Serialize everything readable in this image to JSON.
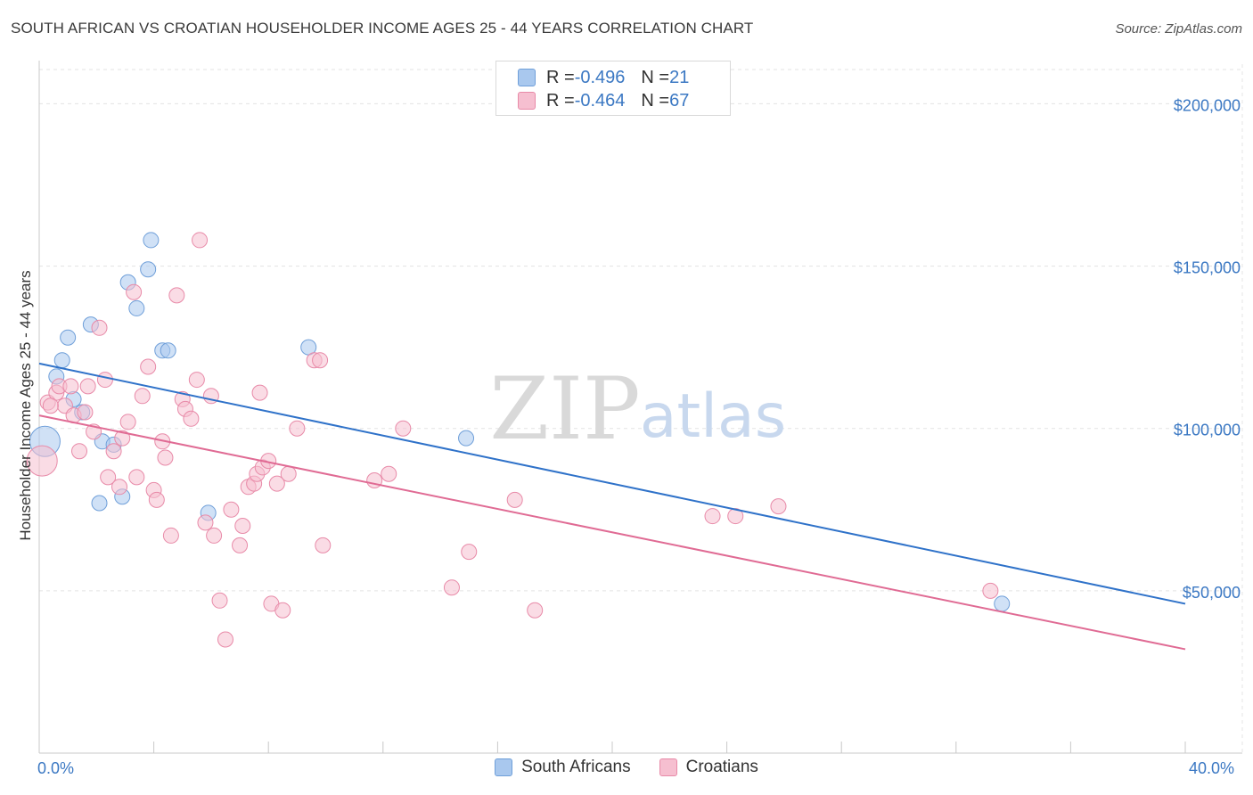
{
  "title": "SOUTH AFRICAN VS CROATIAN HOUSEHOLDER INCOME AGES 25 - 44 YEARS CORRELATION CHART",
  "source": "Source: ZipAtlas.com",
  "watermark": {
    "zip": "ZIP",
    "atlas": "atlas"
  },
  "legend": {
    "rows": [
      {
        "r_label": "R = ",
        "r_value": "-0.496",
        "n_label": "N = ",
        "n_value": "21",
        "color": "#a9c8ee",
        "edge": "#6f9fd9"
      },
      {
        "r_label": "R = ",
        "r_value": "-0.464",
        "n_label": "N = ",
        "n_value": "67",
        "color": "#f6bfd0",
        "edge": "#e88aa8"
      }
    ]
  },
  "bottom_legend": [
    "South Africans",
    "Croatians"
  ],
  "chart_data": {
    "type": "scatter",
    "xlabel": "",
    "ylabel": "Householder Income Ages 25 - 44 years",
    "xlim": [
      0,
      40
    ],
    "ylim": [
      0,
      210000
    ],
    "x_tick_labels": [
      "0.0%",
      "40.0%"
    ],
    "y_ticks": [
      50000,
      100000,
      150000,
      200000
    ],
    "y_tick_labels": [
      "$50,000",
      "$100,000",
      "$150,000",
      "$200,000"
    ],
    "grid": true,
    "series": [
      {
        "name": "South Africans",
        "color": "#a9c8ee",
        "edge": "#6f9fd9",
        "line_color": "#2f72c9",
        "trend": {
          "x0": 0,
          "y0": 120000,
          "x1": 40,
          "y1": 46000
        },
        "points": [
          {
            "x": 0.2,
            "y": 96000,
            "big": true
          },
          {
            "x": 0.6,
            "y": 116000
          },
          {
            "x": 0.8,
            "y": 121000
          },
          {
            "x": 1.0,
            "y": 128000
          },
          {
            "x": 1.2,
            "y": 109000
          },
          {
            "x": 1.5,
            "y": 105000
          },
          {
            "x": 1.8,
            "y": 132000
          },
          {
            "x": 2.1,
            "y": 77000
          },
          {
            "x": 2.2,
            "y": 96000
          },
          {
            "x": 2.6,
            "y": 95000
          },
          {
            "x": 2.9,
            "y": 79000
          },
          {
            "x": 3.1,
            "y": 145000
          },
          {
            "x": 3.4,
            "y": 137000
          },
          {
            "x": 3.8,
            "y": 149000
          },
          {
            "x": 3.9,
            "y": 158000
          },
          {
            "x": 4.3,
            "y": 124000
          },
          {
            "x": 4.5,
            "y": 124000
          },
          {
            "x": 5.9,
            "y": 74000
          },
          {
            "x": 9.4,
            "y": 125000
          },
          {
            "x": 14.9,
            "y": 97000
          },
          {
            "x": 33.6,
            "y": 46000
          }
        ]
      },
      {
        "name": "Croatians",
        "color": "#f6bfd0",
        "edge": "#e88aa8",
        "line_color": "#e06b94",
        "trend": {
          "x0": 0,
          "y0": 104000,
          "x1": 40,
          "y1": 32000
        },
        "points": [
          {
            "x": 0.1,
            "y": 90000,
            "big": true
          },
          {
            "x": 0.3,
            "y": 108000
          },
          {
            "x": 0.6,
            "y": 111000
          },
          {
            "x": 0.7,
            "y": 113000
          },
          {
            "x": 0.9,
            "y": 107000
          },
          {
            "x": 1.1,
            "y": 113000
          },
          {
            "x": 1.2,
            "y": 104000
          },
          {
            "x": 1.4,
            "y": 93000
          },
          {
            "x": 1.6,
            "y": 105000
          },
          {
            "x": 1.7,
            "y": 113000
          },
          {
            "x": 1.9,
            "y": 99000
          },
          {
            "x": 2.1,
            "y": 131000
          },
          {
            "x": 2.3,
            "y": 115000
          },
          {
            "x": 2.4,
            "y": 85000
          },
          {
            "x": 2.6,
            "y": 93000
          },
          {
            "x": 2.8,
            "y": 82000
          },
          {
            "x": 2.9,
            "y": 97000
          },
          {
            "x": 3.1,
            "y": 102000
          },
          {
            "x": 3.3,
            "y": 142000
          },
          {
            "x": 3.4,
            "y": 85000
          },
          {
            "x": 3.6,
            "y": 110000
          },
          {
            "x": 3.8,
            "y": 119000
          },
          {
            "x": 4.0,
            "y": 81000
          },
          {
            "x": 4.1,
            "y": 78000
          },
          {
            "x": 4.3,
            "y": 96000
          },
          {
            "x": 4.4,
            "y": 91000
          },
          {
            "x": 4.6,
            "y": 67000
          },
          {
            "x": 4.8,
            "y": 141000
          },
          {
            "x": 5.0,
            "y": 109000
          },
          {
            "x": 5.1,
            "y": 106000
          },
          {
            "x": 5.3,
            "y": 103000
          },
          {
            "x": 5.5,
            "y": 115000
          },
          {
            "x": 5.6,
            "y": 158000
          },
          {
            "x": 5.8,
            "y": 71000
          },
          {
            "x": 6.0,
            "y": 110000
          },
          {
            "x": 6.1,
            "y": 67000
          },
          {
            "x": 6.3,
            "y": 47000
          },
          {
            "x": 6.5,
            "y": 35000
          },
          {
            "x": 6.7,
            "y": 75000
          },
          {
            "x": 7.0,
            "y": 64000
          },
          {
            "x": 7.1,
            "y": 70000
          },
          {
            "x": 7.3,
            "y": 82000
          },
          {
            "x": 7.5,
            "y": 83000
          },
          {
            "x": 7.6,
            "y": 86000
          },
          {
            "x": 7.7,
            "y": 111000
          },
          {
            "x": 7.8,
            "y": 88000
          },
          {
            "x": 8.0,
            "y": 90000
          },
          {
            "x": 8.1,
            "y": 46000
          },
          {
            "x": 8.3,
            "y": 83000
          },
          {
            "x": 8.5,
            "y": 44000
          },
          {
            "x": 8.7,
            "y": 86000
          },
          {
            "x": 9.0,
            "y": 100000
          },
          {
            "x": 9.6,
            "y": 121000
          },
          {
            "x": 9.8,
            "y": 121000
          },
          {
            "x": 9.9,
            "y": 64000
          },
          {
            "x": 11.7,
            "y": 84000
          },
          {
            "x": 12.2,
            "y": 86000
          },
          {
            "x": 12.7,
            "y": 100000
          },
          {
            "x": 14.4,
            "y": 51000
          },
          {
            "x": 15.0,
            "y": 62000
          },
          {
            "x": 16.6,
            "y": 78000
          },
          {
            "x": 17.3,
            "y": 44000
          },
          {
            "x": 23.5,
            "y": 73000
          },
          {
            "x": 24.3,
            "y": 73000
          },
          {
            "x": 25.8,
            "y": 76000
          },
          {
            "x": 33.2,
            "y": 50000
          },
          {
            "x": 0.4,
            "y": 107000
          }
        ]
      }
    ]
  }
}
